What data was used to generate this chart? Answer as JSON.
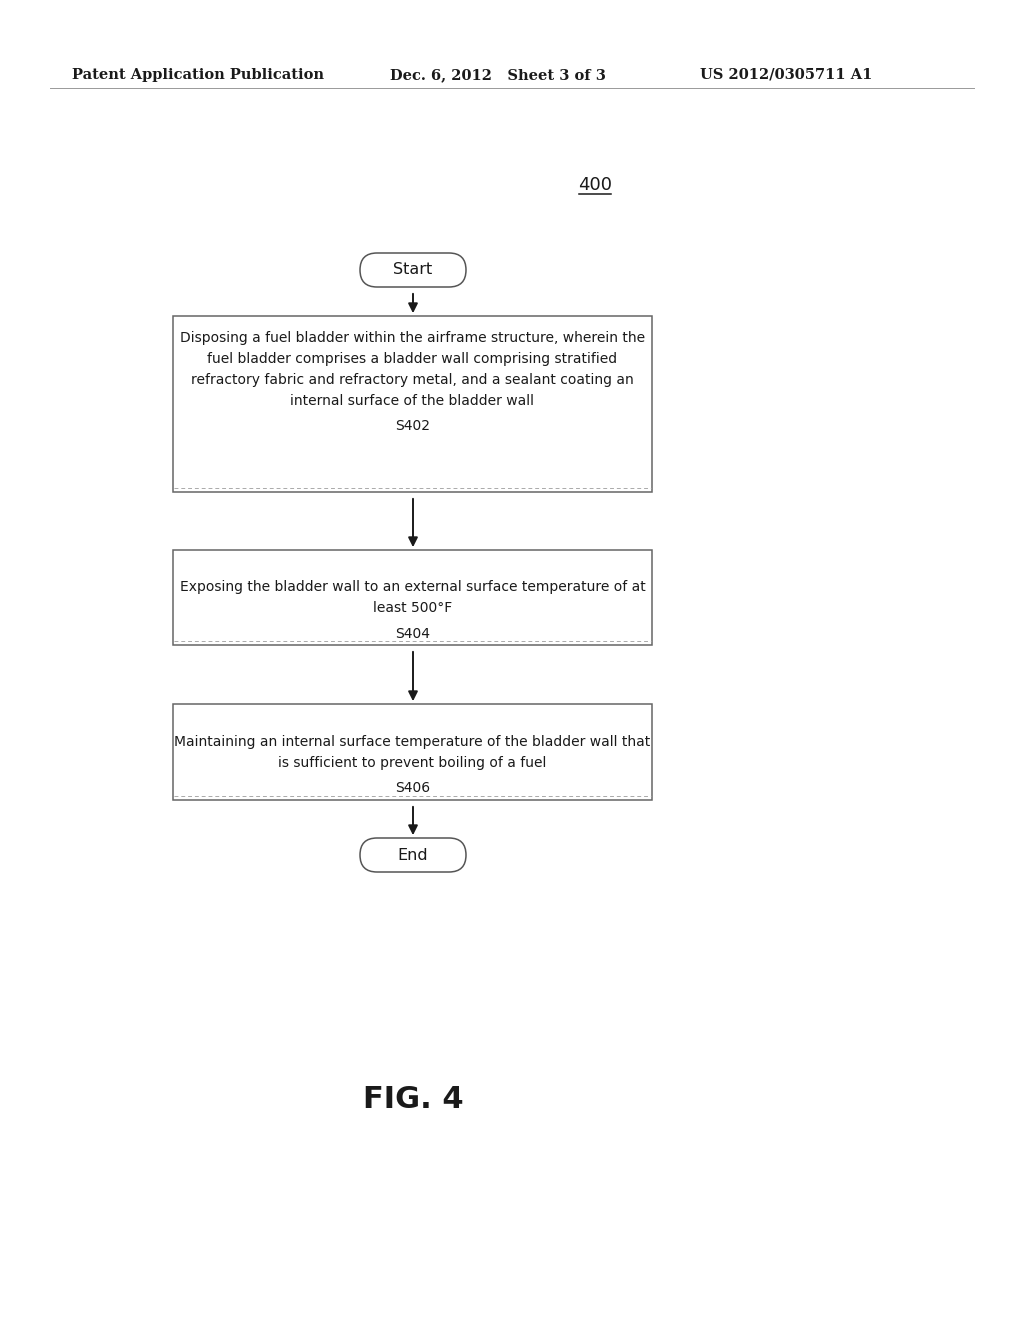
{
  "bg_color": "#ffffff",
  "text_color": "#1a1a1a",
  "header_left": "Patent Application Publication",
  "header_mid": "Dec. 6, 2012   Sheet 3 of 3",
  "header_right": "US 2012/0305711 A1",
  "figure_label": "400",
  "start_label": "Start",
  "end_label": "End",
  "box1_line1": "Disposing a fuel bladder within the airframe structure, wherein the",
  "box1_line2": "fuel bladder comprises a bladder wall comprising stratified",
  "box1_line3": "refractory fabric and refractory metal, and a sealant coating an",
  "box1_line4": "internal surface of the bladder wall",
  "box1_code": "S402",
  "box2_line1": "Exposing the bladder wall to an external surface temperature of at",
  "box2_line2": "least 500°F",
  "box2_code": "S404",
  "box3_line1": "Maintaining an internal surface temperature of the bladder wall that",
  "box3_line2": "is sufficient to prevent boiling of a fuel",
  "box3_code": "S406",
  "fig_label": "FIG. 4",
  "box_border_color": "#666666",
  "dashed_border_color": "#aaaaaa",
  "arrow_color": "#1a1a1a",
  "oval_border_color": "#555555"
}
